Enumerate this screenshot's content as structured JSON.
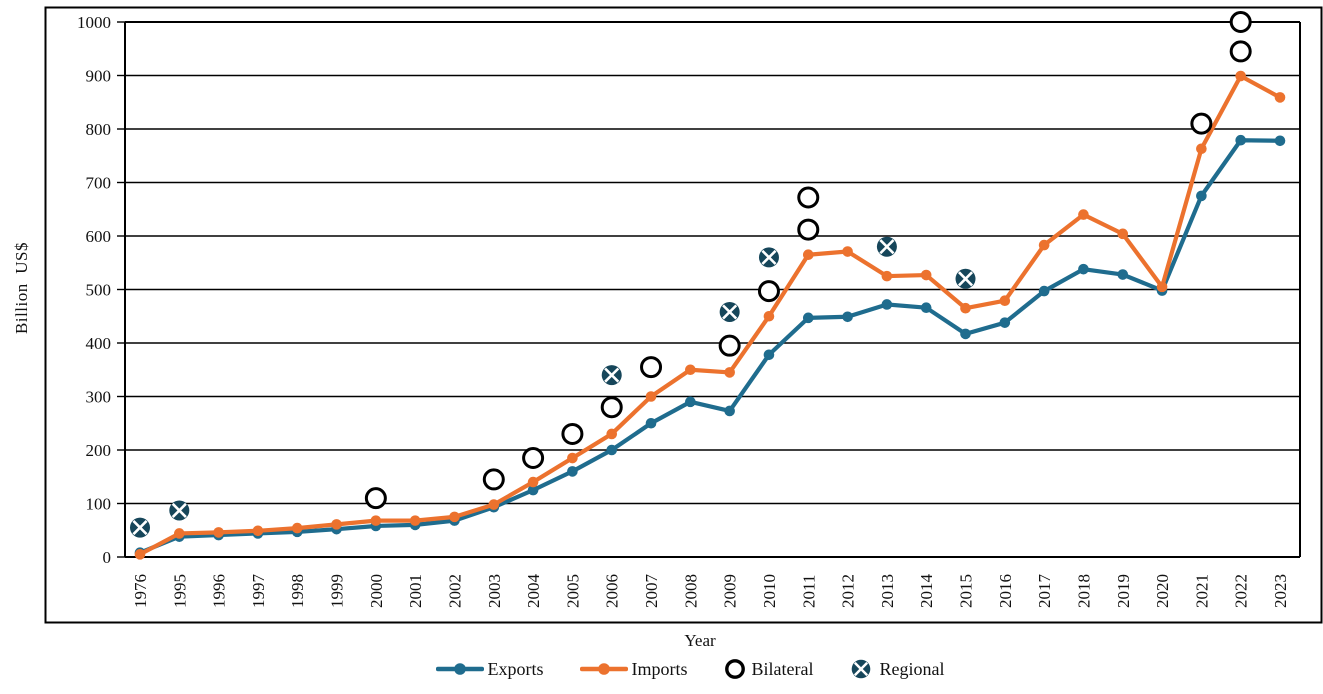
{
  "figure": {
    "y_axis_title": "Billion  US$",
    "x_axis_title": "Year"
  },
  "legend": {
    "items": [
      {
        "key": "exports",
        "label": "Exports"
      },
      {
        "key": "imports",
        "label": "Imports"
      },
      {
        "key": "bilateral",
        "label": "Bilateral"
      },
      {
        "key": "regional",
        "label": "Regional"
      }
    ]
  },
  "colors": {
    "exports": "#1F6C8E",
    "imports": "#EC722E",
    "bilateral_stroke": "#000000",
    "regional_fill": "#16465A",
    "grid": "#000000",
    "text": "#111111"
  },
  "chart_data": {
    "type": "line",
    "title": "",
    "xlabel": "Year",
    "ylabel": "Billion  US$",
    "ylim": [
      0,
      1000
    ],
    "ytick_step": 100,
    "grid": true,
    "legend_position": "bottom",
    "categories": [
      "1976",
      "1995",
      "1996",
      "1997",
      "1998",
      "1999",
      "2000",
      "2001",
      "2002",
      "2003",
      "2004",
      "2005",
      "2006",
      "2007",
      "2008",
      "2009",
      "2010",
      "2011",
      "2012",
      "2013",
      "2014",
      "2015",
      "2016",
      "2017",
      "2018",
      "2019",
      "2020",
      "2021",
      "2022",
      "2023"
    ],
    "series": [
      {
        "name": "Exports",
        "type": "line",
        "color": "#1F6C8E",
        "values": [
          8,
          38,
          41,
          44,
          47,
          52,
          58,
          60,
          68,
          93,
          125,
          160,
          200,
          250,
          290,
          273,
          378,
          447,
          449,
          472,
          466,
          417,
          438,
          497,
          538,
          528,
          498,
          675,
          779,
          778
        ]
      },
      {
        "name": "Imports",
        "type": "line",
        "color": "#EC722E",
        "values": [
          5,
          44,
          46,
          49,
          54,
          61,
          68,
          68,
          75,
          98,
          140,
          185,
          230,
          300,
          350,
          345,
          450,
          565,
          571,
          525,
          527,
          465,
          479,
          583,
          640,
          604,
          505,
          763,
          899,
          859
        ]
      },
      {
        "name": "Bilateral",
        "type": "scatter",
        "marker": "open-circle",
        "color": "#000000",
        "points": [
          {
            "year": "2000",
            "value": 110
          },
          {
            "year": "2003",
            "value": 145
          },
          {
            "year": "2004",
            "value": 185
          },
          {
            "year": "2005",
            "value": 230
          },
          {
            "year": "2006",
            "value": 280
          },
          {
            "year": "2007",
            "value": 355
          },
          {
            "year": "2009",
            "value": 395
          },
          {
            "year": "2010",
            "value": 497
          },
          {
            "year": "2011",
            "value": 612
          },
          {
            "year": "2011",
            "value": 672
          },
          {
            "year": "2021",
            "value": 810
          },
          {
            "year": "2022",
            "value": 945
          },
          {
            "year": "2022",
            "value": 1000
          }
        ]
      },
      {
        "name": "Regional",
        "type": "scatter",
        "marker": "circle-x",
        "color": "#16465A",
        "points": [
          {
            "year": "1976",
            "value": 55
          },
          {
            "year": "1995",
            "value": 87
          },
          {
            "year": "2006",
            "value": 340
          },
          {
            "year": "2009",
            "value": 458
          },
          {
            "year": "2010",
            "value": 560
          },
          {
            "year": "2013",
            "value": 580
          },
          {
            "year": "2015",
            "value": 520
          }
        ]
      }
    ]
  }
}
